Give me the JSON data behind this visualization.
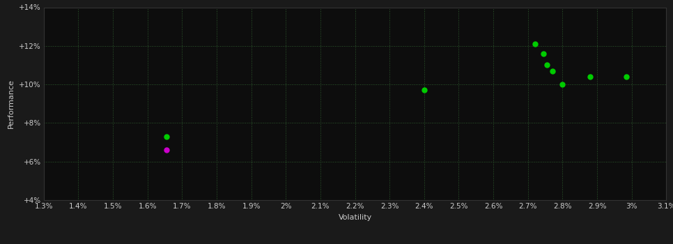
{
  "background_color": "#1a1a1a",
  "plot_bg_color": "#0d0d0d",
  "grid_color": "#2d5a2d",
  "grid_linestyle": ":",
  "xlabel": "Volatility",
  "ylabel": "Performance",
  "xlim": [
    0.013,
    0.031
  ],
  "ylim": [
    0.04,
    0.14
  ],
  "xticks": [
    0.013,
    0.014,
    0.015,
    0.016,
    0.017,
    0.018,
    0.019,
    0.02,
    0.021,
    0.022,
    0.023,
    0.024,
    0.025,
    0.026,
    0.027,
    0.028,
    0.029,
    0.03,
    0.031
  ],
  "xtick_labels": [
    "1.3%",
    "1.4%",
    "1.5%",
    "1.6%",
    "1.7%",
    "1.8%",
    "1.9%",
    "2%",
    "2.1%",
    "2.2%",
    "2.3%",
    "2.4%",
    "2.5%",
    "2.6%",
    "2.7%",
    "2.8%",
    "2.9%",
    "3%",
    "3.1%"
  ],
  "yticks": [
    0.04,
    0.06,
    0.08,
    0.1,
    0.12,
    0.14
  ],
  "ytick_labels": [
    "+4%",
    "+6%",
    "+8%",
    "+10%",
    "+12%",
    "+14%"
  ],
  "green_points": [
    [
      0.01655,
      0.073
    ],
    [
      0.024,
      0.097
    ],
    [
      0.0272,
      0.121
    ],
    [
      0.02745,
      0.116
    ],
    [
      0.02755,
      0.11
    ],
    [
      0.0277,
      0.107
    ],
    [
      0.028,
      0.1
    ],
    [
      0.0288,
      0.104
    ],
    [
      0.02985,
      0.104
    ]
  ],
  "purple_points": [
    [
      0.01655,
      0.066
    ]
  ],
  "green_color": "#00cc00",
  "purple_color": "#cc00cc",
  "point_size": 25,
  "axis_label_color": "#cccccc",
  "tick_color": "#cccccc",
  "label_fontsize": 8,
  "tick_fontsize": 7.5,
  "spine_color": "#333333"
}
